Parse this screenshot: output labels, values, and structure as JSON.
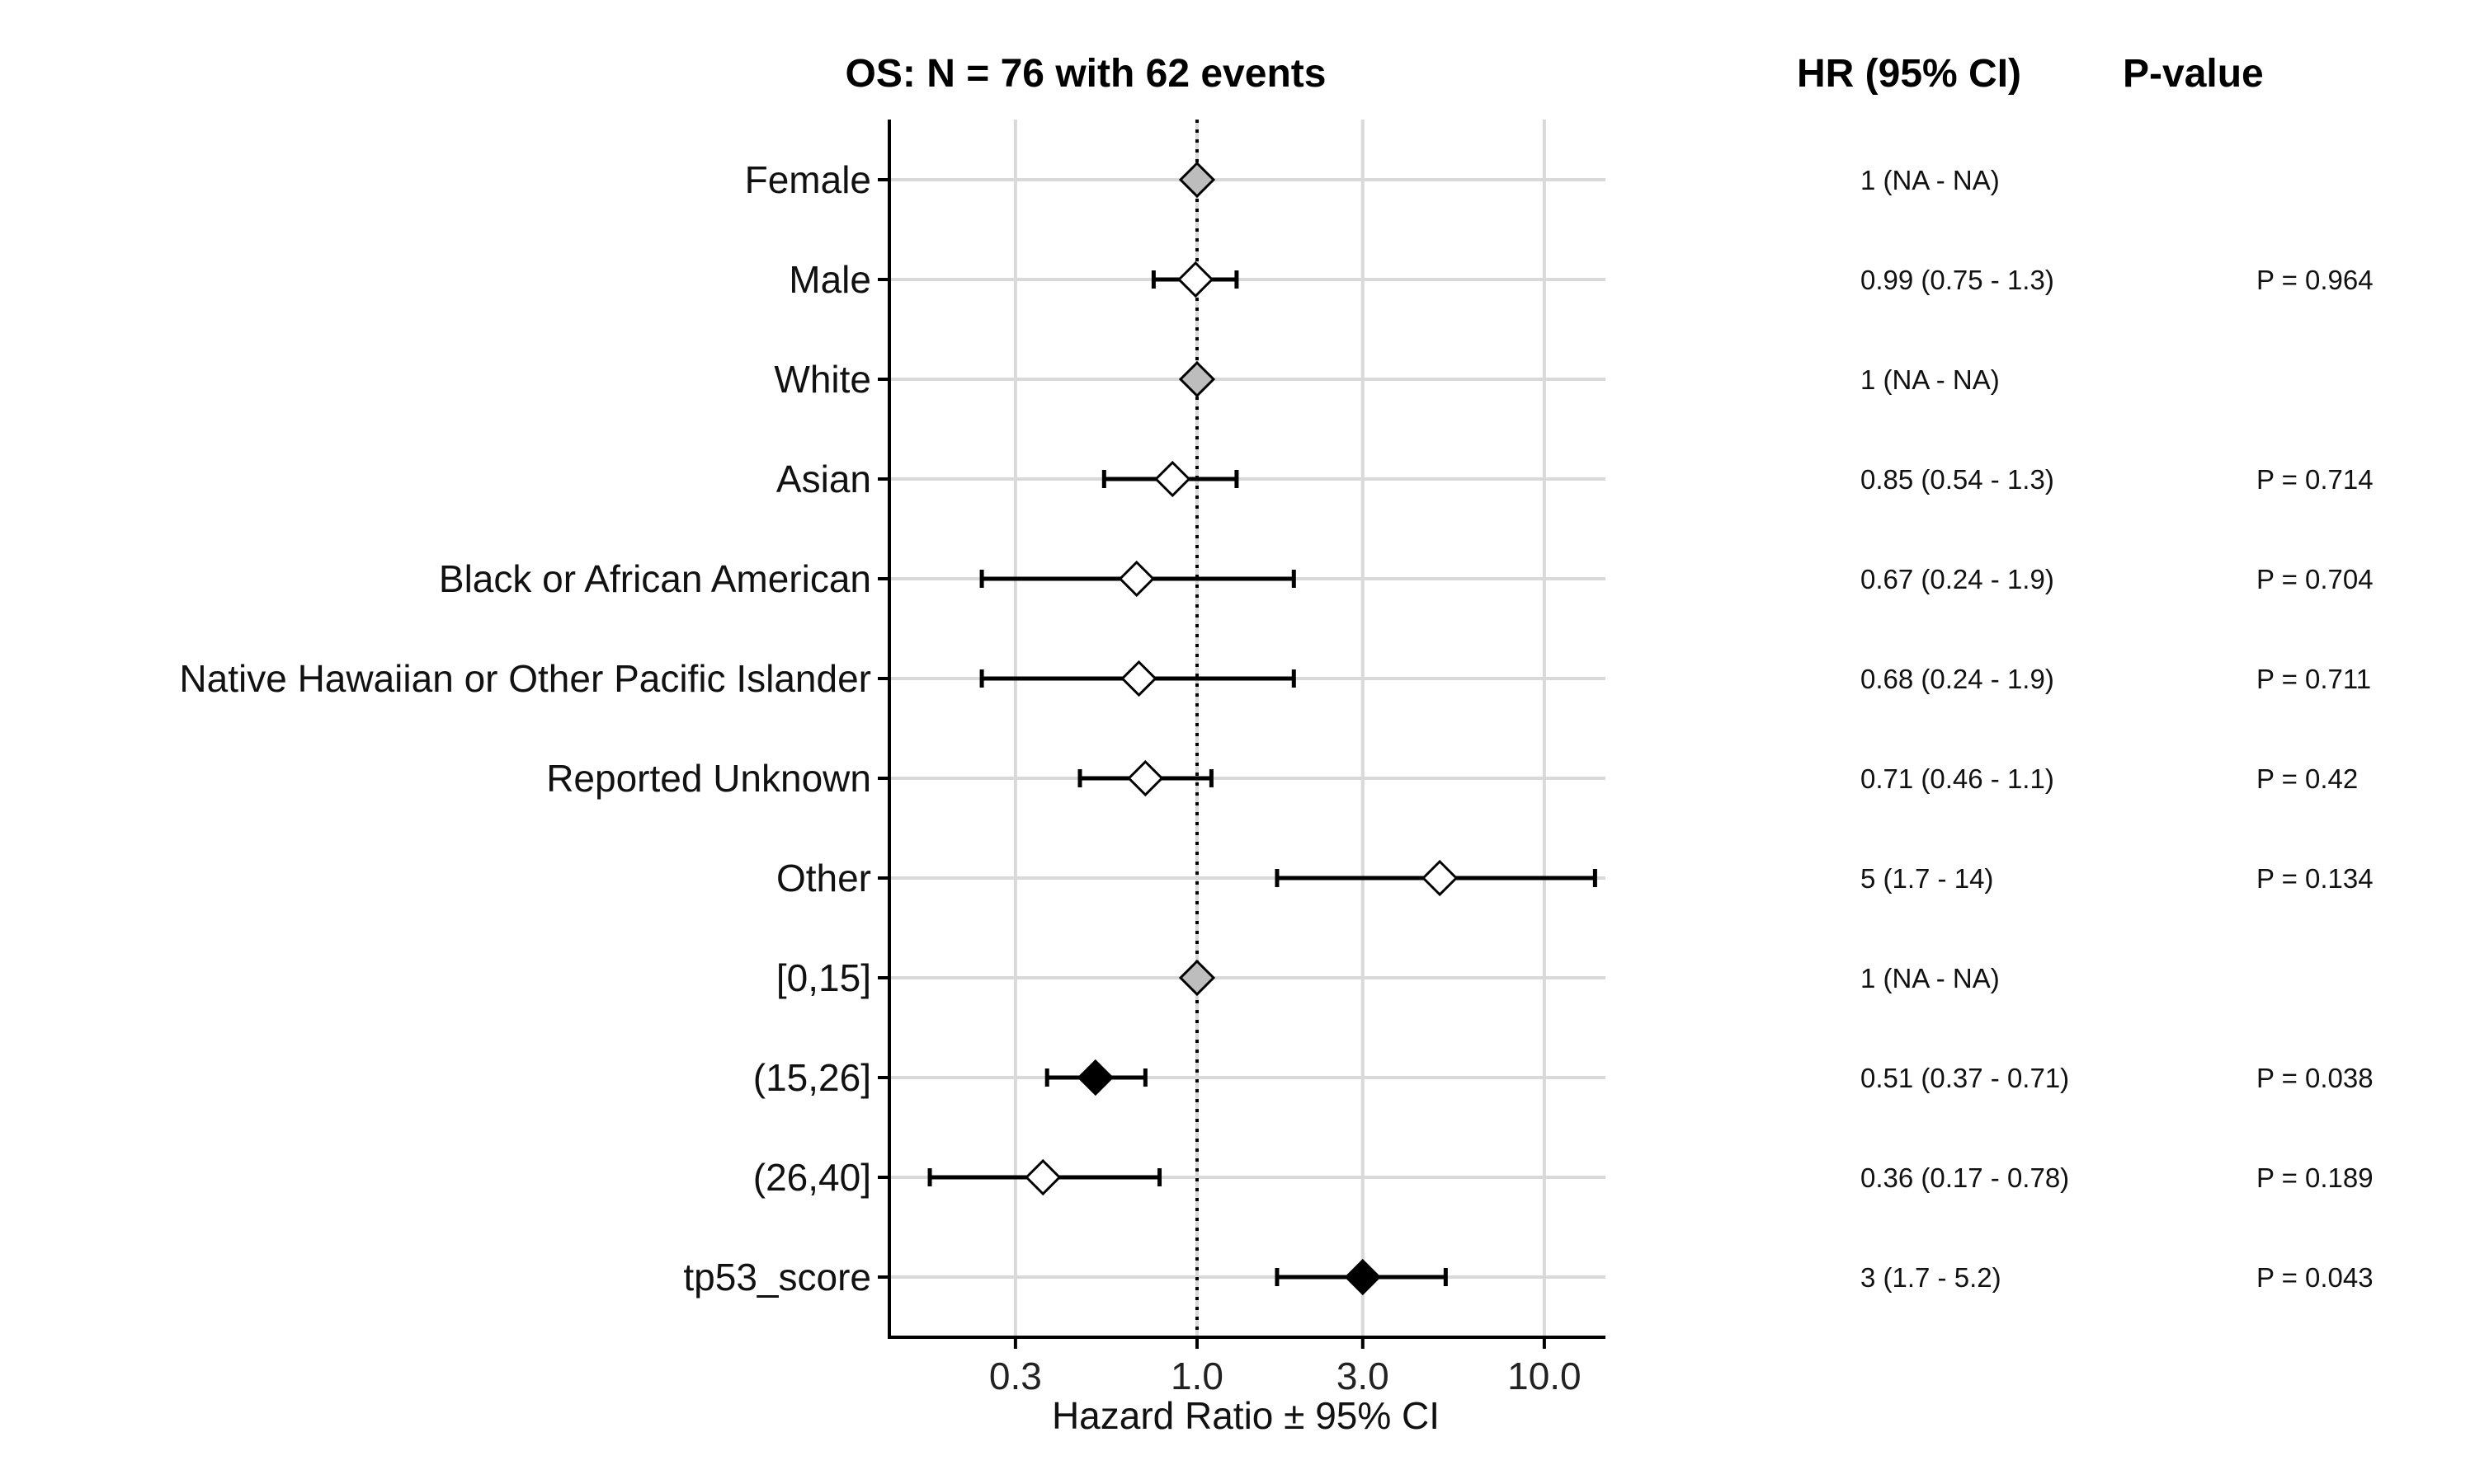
{
  "chart_data": {
    "type": "forest",
    "title": "OS: N = 76 with 62 events",
    "xlabel": "Hazard Ratio ± 95% CI",
    "x_scale": "log",
    "xlim": [
      0.13,
      15
    ],
    "x_ticks": [
      0.3,
      1.0,
      3.0,
      10.0
    ],
    "x_tick_labels": [
      "0.3",
      "1.0",
      "3.0",
      "10.0"
    ],
    "reference_line": 1,
    "grid": true,
    "table_headers": {
      "hr": "HR (95% CI)",
      "p": "P-value"
    },
    "rows": [
      {
        "label": "Female",
        "hr": 1,
        "lo": null,
        "hi": null,
        "hr_text": "1 (NA - NA)",
        "p_text": "",
        "style": "reference"
      },
      {
        "label": "Male",
        "hr": 0.99,
        "lo": 0.75,
        "hi": 1.3,
        "hr_text": "0.99 (0.75 - 1.3)",
        "p_text": "P = 0.964",
        "style": "ns"
      },
      {
        "label": "White",
        "hr": 1,
        "lo": null,
        "hi": null,
        "hr_text": "1 (NA - NA)",
        "p_text": "",
        "style": "reference"
      },
      {
        "label": "Asian",
        "hr": 0.85,
        "lo": 0.54,
        "hi": 1.3,
        "hr_text": "0.85 (0.54 - 1.3)",
        "p_text": "P = 0.714",
        "style": "ns"
      },
      {
        "label": "Black or African American",
        "hr": 0.67,
        "lo": 0.24,
        "hi": 1.9,
        "hr_text": "0.67 (0.24 - 1.9)",
        "p_text": "P = 0.704",
        "style": "ns"
      },
      {
        "label": "Native Hawaiian or Other Pacific Islander",
        "hr": 0.68,
        "lo": 0.24,
        "hi": 1.9,
        "hr_text": "0.68 (0.24 - 1.9)",
        "p_text": "P = 0.711",
        "style": "ns"
      },
      {
        "label": "Reported Unknown",
        "hr": 0.71,
        "lo": 0.46,
        "hi": 1.1,
        "hr_text": "0.71 (0.46 - 1.1)",
        "p_text": "P = 0.42",
        "style": "ns"
      },
      {
        "label": "Other",
        "hr": 5,
        "lo": 1.7,
        "hi": 14,
        "hr_text": "5 (1.7 - 14)",
        "p_text": "P = 0.134",
        "style": "ns"
      },
      {
        "label": "[0,15]",
        "hr": 1,
        "lo": null,
        "hi": null,
        "hr_text": "1 (NA - NA)",
        "p_text": "",
        "style": "reference"
      },
      {
        "label": "(15,26]",
        "hr": 0.51,
        "lo": 0.37,
        "hi": 0.71,
        "hr_text": "0.51 (0.37 - 0.71)",
        "p_text": "P = 0.038",
        "style": "significant"
      },
      {
        "label": "(26,40]",
        "hr": 0.36,
        "lo": 0.17,
        "hi": 0.78,
        "hr_text": "0.36 (0.17 - 0.78)",
        "p_text": "P = 0.189",
        "style": "ns"
      },
      {
        "label": "tp53_score",
        "hr": 3,
        "lo": 1.7,
        "hi": 5.2,
        "hr_text": "3 (1.7 - 5.2)",
        "p_text": "P = 0.043",
        "style": "significant"
      }
    ],
    "colors": {
      "reference_fill": "#bdbdbd",
      "ns_fill": "#ffffff",
      "significant_fill": "#000000",
      "grid": "#d9d9d9",
      "axis": "#000000"
    }
  }
}
